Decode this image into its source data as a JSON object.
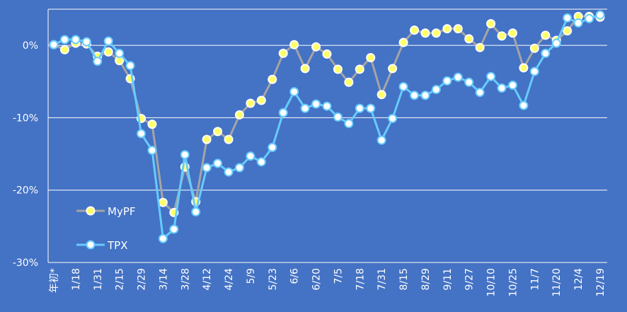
{
  "chart_data": {
    "type": "line",
    "x_tick_labels": [
      "年初*",
      "1/18",
      "1/31",
      "2/15",
      "2/29",
      "3/14",
      "3/28",
      "4/12",
      "4/24",
      "5/9",
      "5/23",
      "6/6",
      "6/20",
      "7/5",
      "7/18",
      "7/31",
      "8/15",
      "8/29",
      "9/11",
      "9/27",
      "10/10",
      "10/25",
      "11/7",
      "11/20",
      "12/4",
      "12/19"
    ],
    "y_ticks": [
      0,
      -10,
      -20,
      -30
    ],
    "y_tick_labels": [
      "0%",
      "-10%",
      "-20%",
      "-30%"
    ],
    "ylim": [
      -30,
      5
    ],
    "grid": true,
    "legend_position": "bottom-left",
    "series": [
      {
        "name": "MyPF",
        "line_color": "#a5a5a5",
        "marker_fill": "#ffff66",
        "marker_stroke": "#ffffff",
        "values": [
          0.1,
          -0.6,
          0.3,
          0.2,
          -1.5,
          -0.9,
          -2.1,
          -4.6,
          -10.1,
          -10.9,
          -21.7,
          -23.1,
          -16.8,
          -21.6,
          -13.0,
          -11.9,
          -13.0,
          -9.6,
          -8.0,
          -7.6,
          -4.7,
          -1.1,
          0.1,
          -3.2,
          -0.2,
          -1.2,
          -3.3,
          -5.1,
          -3.3,
          -1.7,
          -6.8,
          -3.2,
          0.4,
          2.1,
          1.7,
          1.7,
          2.3,
          2.3,
          0.9,
          -0.3,
          3.0,
          1.3,
          1.7,
          -3.1,
          -0.4,
          1.4,
          0.7,
          2.0,
          4.0,
          4.0,
          3.9
        ]
      },
      {
        "name": "TPX",
        "line_color": "#66ccff",
        "marker_fill": "#ffffff",
        "marker_stroke": "#66ccff",
        "values": [
          0.1,
          0.8,
          0.8,
          0.5,
          -2.2,
          0.6,
          -1.1,
          -2.8,
          -12.2,
          -14.5,
          -26.7,
          -25.4,
          -15.1,
          -23.0,
          -16.9,
          -16.3,
          -17.5,
          -16.9,
          -15.3,
          -16.1,
          -14.1,
          -9.3,
          -6.4,
          -8.7,
          -8.1,
          -8.4,
          -9.9,
          -10.8,
          -8.7,
          -8.7,
          -13.1,
          -10.1,
          -5.7,
          -6.9,
          -6.9,
          -6.1,
          -4.9,
          -4.4,
          -5.1,
          -6.5,
          -4.3,
          -5.9,
          -5.5,
          -8.3,
          -3.6,
          -1.1,
          0.3,
          3.8,
          3.1,
          3.7,
          4.2
        ]
      }
    ]
  }
}
